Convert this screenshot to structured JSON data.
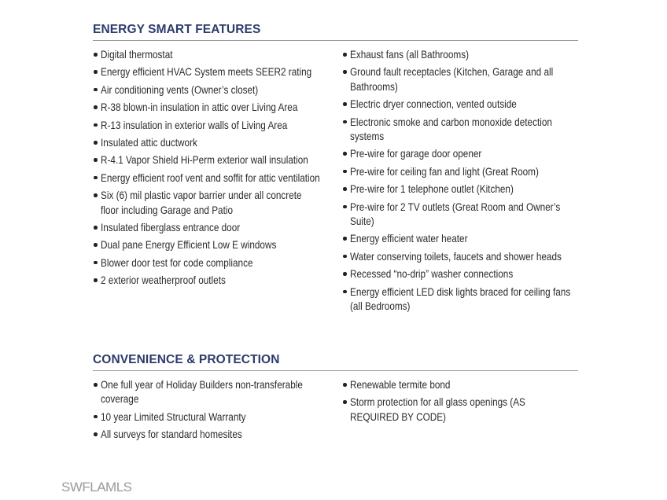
{
  "sections": [
    {
      "title": "ENERGY SMART FEATURES",
      "left": [
        "Digital thermostat",
        "Energy efficient HVAC System meets SEER2 rating",
        "Air conditioning vents (Owner’s closet)",
        "R-38 blown-in insulation in attic over Living Area",
        "R-13 insulation in exterior walls of Living Area",
        "Insulated attic ductwork",
        "R-4.1 Vapor Shield Hi-Perm exterior wall insulation",
        "Energy efficient roof vent and soffit for attic ventilation",
        "Six (6) mil plastic vapor barrier under all concrete floor including Garage and Patio",
        "Insulated fiberglass entrance door",
        "Dual pane Energy Efficient Low E windows",
        "Blower door test for code compliance",
        "2 exterior weatherproof outlets"
      ],
      "right": [
        "Exhaust fans (all Bathrooms)",
        "Ground fault receptacles (Kitchen, Garage and all Bathrooms)",
        "Electric dryer connection, vented outside",
        "Electronic smoke and carbon monoxide detection systems",
        "Pre-wire for garage door opener",
        "Pre-wire for ceiling fan and light (Great Room)",
        "Pre-wire for 1 telephone outlet (Kitchen)",
        "Pre-wire for 2 TV outlets (Great Room and Owner’s Suite)",
        "Energy efficient water heater",
        "Water conserving toilets, faucets and shower heads",
        "Recessed “no-drip” washer connections",
        "Energy efficient LED disk lights braced for ceiling fans (all Bedrooms)"
      ]
    },
    {
      "title": "CONVENIENCE & PROTECTION",
      "left": [
        "One full year of Holiday Builders non-transferable coverage",
        "10 year Limited Structural Warranty",
        "All surveys for standard homesites"
      ],
      "right": [
        "Renewable termite bond",
        "Storm protection for all glass openings (AS REQUIRED BY CODE)"
      ]
    }
  ],
  "watermark": "SWFLAMLS",
  "colors": {
    "heading": "#2c3b6b",
    "rule": "#9a9a9a",
    "text": "#2b2b2b"
  }
}
